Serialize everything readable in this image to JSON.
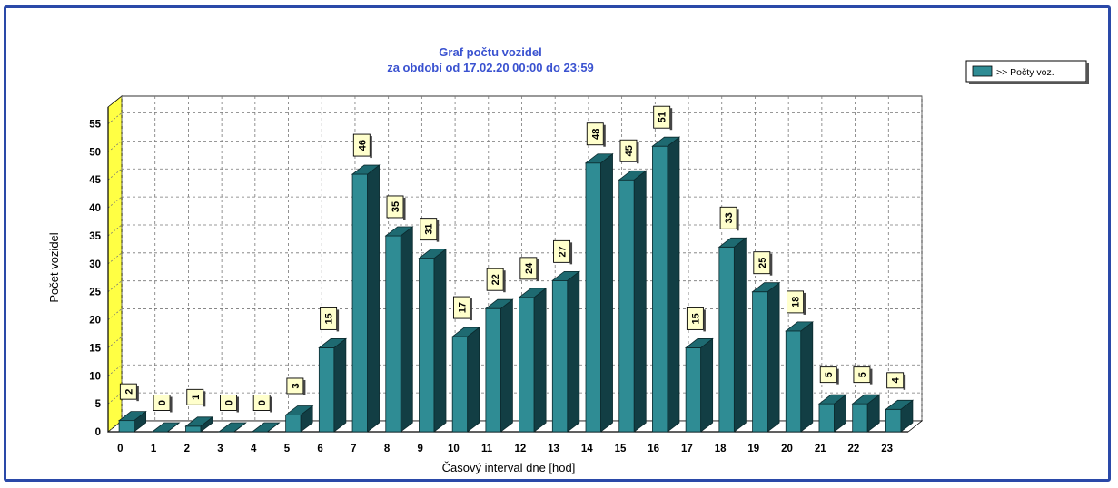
{
  "chart_data": {
    "type": "bar",
    "title": "Graf počtu vozidel",
    "subtitle": "za období od 17.02.20 00:00 do 23:59",
    "xlabel": "Časový interval dne [hod]",
    "ylabel": "Počet vozidel",
    "categories": [
      "0",
      "1",
      "2",
      "3",
      "4",
      "5",
      "6",
      "7",
      "8",
      "9",
      "10",
      "11",
      "12",
      "13",
      "14",
      "15",
      "16",
      "17",
      "18",
      "19",
      "20",
      "21",
      "22",
      "23"
    ],
    "series": [
      {
        "name": ">> Počty voz.",
        "values": [
          2,
          0,
          1,
          0,
          0,
          3,
          15,
          46,
          35,
          31,
          17,
          22,
          24,
          27,
          48,
          45,
          51,
          15,
          33,
          25,
          18,
          5,
          5,
          4
        ]
      }
    ],
    "ylim": [
      0,
      58
    ],
    "yticks": [
      0,
      5,
      10,
      15,
      20,
      25,
      30,
      35,
      40,
      45,
      50,
      55
    ],
    "grid": true,
    "legend": "top-right",
    "data_labels": true,
    "colors": {
      "bar_front": "#2f8c94",
      "bar_side": "#123e44",
      "bar_top": "#1e6a71",
      "wall_left": "#ffff44",
      "label_box": "#ffffcc",
      "title": "#3a52d0",
      "frame": "#2a49a8"
    }
  }
}
